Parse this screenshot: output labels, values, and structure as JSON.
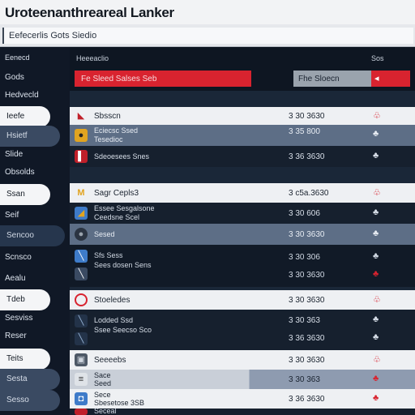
{
  "window": {
    "title": "Uroteenanthreareal Lanker"
  },
  "search": {
    "value": "Eefecerlis Gots Siedio"
  },
  "sidebar": {
    "header": "Eenecd",
    "items": [
      {
        "label": "Gods"
      },
      {
        "label": "Hedvecld"
      },
      {
        "label": "Ieefe"
      },
      {
        "label": "Hsietf"
      },
      {
        "label": "Slide"
      },
      {
        "label": "Obsolds"
      },
      {
        "label": "Ssan"
      },
      {
        "label": "Seif"
      },
      {
        "label": "Sencoo"
      },
      {
        "label": "Scnsco"
      },
      {
        "label": "Aealu"
      },
      {
        "label": "Tdeb"
      },
      {
        "label": "Sesviss"
      },
      {
        "label": "Reser"
      },
      {
        "label": "Teits"
      },
      {
        "label": "Sesta"
      },
      {
        "label": "Sesso"
      }
    ]
  },
  "columns": {
    "name": "Heeeaclio",
    "value": "Sos"
  },
  "toprow": {
    "red_label": "Fe Sleed Salses Seb",
    "gray_label": "Fhe Sloecn",
    "red_icon": "◂"
  },
  "rows": [
    {
      "title": "Sbsscn",
      "value": "3 30 3630",
      "action": "♧"
    },
    {
      "sub1": "Eciecsc Ssed",
      "sub2": "Tesedioc",
      "value1": "3 35 800",
      "value2": "3 36 35 3"
    },
    {
      "sub1": "Sdeoesees Snes",
      "sub2": "",
      "value1": "3 36 3630",
      "value2": ""
    },
    {
      "title": "Sagr Cepls3",
      "value": "3 c5a.3630",
      "action": "♧"
    },
    {
      "sub1": "Essee Sesgalsone",
      "sub2": "Ceedsne Scel",
      "value1": "3 30 606",
      "value2": ""
    },
    {
      "sub1": "Sesed",
      "sub2": "",
      "value1": "3 30 3630",
      "value2": ""
    },
    {
      "sub1": "Sfs Sess",
      "sub2": "Sees dosen Sens",
      "value1": "3 30 306",
      "value2": "3 30 3630"
    },
    {
      "title": "Stoeledes",
      "value": "3 30 3630",
      "action": "♧"
    },
    {
      "sub1": "Lodded Ssd",
      "sub2": "Ssee Seecso Sco",
      "value1": "3 30 363",
      "value2": "3 36 3630"
    },
    {
      "title": "Seeeebs",
      "value": "3 30 3630",
      "action": "♧"
    },
    {
      "sub1": "Sace",
      "sub2": "Seed",
      "value1": "3 30 363",
      "value2": ""
    },
    {
      "sub1": "Sece",
      "sub2": "Sbesetose 3SB",
      "value1": "3 36 3630",
      "value2": ""
    },
    {
      "sub1": "Seceal",
      "sub2": "",
      "value1": "",
      "value2": ""
    }
  ],
  "colors": {
    "accent_red": "#d8232f",
    "bg": "#1a2738"
  }
}
